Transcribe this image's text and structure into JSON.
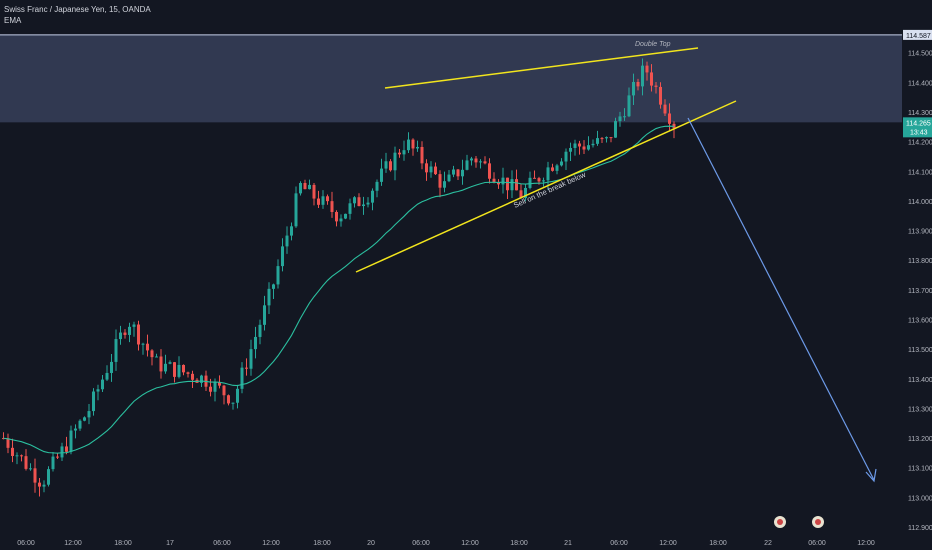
{
  "header": {
    "symbol_title": "Swiss Franc / Japanese Yen, 15, OANDA",
    "indicator": "EMA"
  },
  "colors": {
    "background": "#131722",
    "bull": "#26a69a",
    "bear": "#ef5350",
    "ema": "#2bbf9f",
    "trendline": "#f2e51d",
    "zone": "#4a5578",
    "arrow": "#6d9ae8",
    "axis_text": "#b2b5be",
    "price_tag": "#26a69a",
    "top_tag": "#d9e0f0"
  },
  "chart_data": {
    "type": "candlestick",
    "x_ticks": [
      "06:00",
      "12:00",
      "18:00",
      "17",
      "06:00",
      "12:00",
      "18:00",
      "20",
      "06:00",
      "12:00",
      "18:00",
      "21",
      "06:00",
      "12:00",
      "18:00",
      "22",
      "06:00",
      "12:00"
    ],
    "y_ticks": [
      "114.500",
      "114.400",
      "114.300",
      "114.200",
      "114.100",
      "114.000",
      "113.900",
      "113.800",
      "113.700",
      "113.600",
      "113.500",
      "113.400",
      "113.300",
      "113.200",
      "113.100",
      "113.000",
      "112.900"
    ],
    "ylim": [
      112.88,
      114.61
    ],
    "price_labels": {
      "top_line": "114.587",
      "current": "114.265",
      "countdown": "13:43"
    },
    "zone": {
      "top": 114.56,
      "bottom": 114.265
    },
    "annotations": {
      "double_top": "Double Top",
      "sell_note": "Sell on the break below"
    },
    "series_key_points": [
      {
        "t": 0,
        "price": 113.2
      },
      {
        "t": 4,
        "price": 113.05
      },
      {
        "t": 9,
        "price": 113.3
      },
      {
        "t": 13,
        "price": 113.6
      },
      {
        "t": 16,
        "price": 113.45
      },
      {
        "t": 21,
        "price": 113.4
      },
      {
        "t": 24,
        "price": 113.33
      },
      {
        "t": 28,
        "price": 113.7
      },
      {
        "t": 31,
        "price": 114.05
      },
      {
        "t": 35,
        "price": 113.95
      },
      {
        "t": 38,
        "price": 114.02
      },
      {
        "t": 42,
        "price": 114.2
      },
      {
        "t": 46,
        "price": 114.05
      },
      {
        "t": 49,
        "price": 114.15
      },
      {
        "t": 54,
        "price": 114.02
      },
      {
        "t": 59,
        "price": 114.18
      },
      {
        "t": 63,
        "price": 114.2
      },
      {
        "t": 67,
        "price": 114.45
      },
      {
        "t": 70,
        "price": 114.26
      }
    ]
  }
}
